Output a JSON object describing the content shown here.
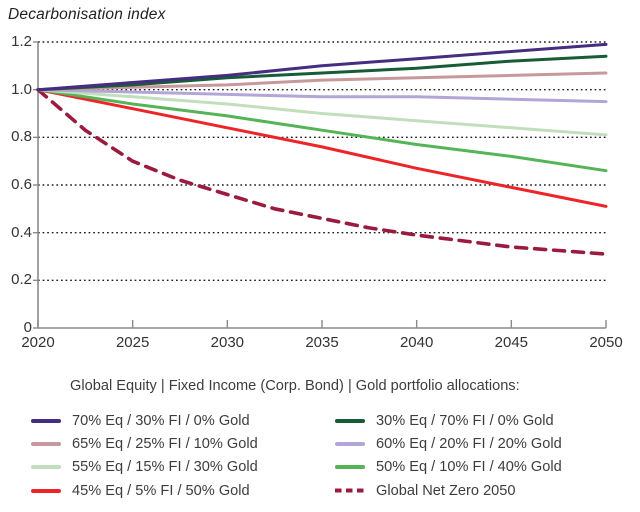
{
  "chart_data": {
    "type": "line",
    "title": "Decarbonisation index",
    "xlabel": "",
    "ylabel": "Decarbonisation index",
    "xlim": [
      2020,
      2050
    ],
    "ylim": [
      0,
      1.2
    ],
    "x_ticks": [
      2020,
      2025,
      2030,
      2035,
      2040,
      2045,
      2050
    ],
    "y_ticks": [
      0,
      0.2,
      0.4,
      0.6,
      0.8,
      1.0,
      1.2
    ],
    "y_tick_labels": [
      "0",
      "0.2",
      "0.4",
      "0.6",
      "0.8",
      "1.0",
      "1.2"
    ],
    "grid": "horizontal dotted lines at 0.2 intervals",
    "legend_position": "below",
    "axis_color": "#8a8a8a",
    "gridline_color": "#1c1c1c",
    "series": [
      {
        "name": "70% Eq / 30% FI / 0% Gold",
        "color": "#452d82",
        "style": "solid",
        "x": [
          2020,
          2025,
          2030,
          2035,
          2040,
          2045,
          2050
        ],
        "values": [
          1.0,
          1.03,
          1.06,
          1.1,
          1.13,
          1.16,
          1.19
        ]
      },
      {
        "name": "30% Eq / 70% FI / 0% Gold",
        "color": "#175c36",
        "style": "solid",
        "x": [
          2020,
          2025,
          2030,
          2035,
          2040,
          2045,
          2050
        ],
        "values": [
          1.0,
          1.02,
          1.05,
          1.07,
          1.09,
          1.12,
          1.14
        ]
      },
      {
        "name": "65% Eq / 25% FI / 10% Gold",
        "color": "#c7989c",
        "style": "solid",
        "x": [
          2020,
          2025,
          2030,
          2035,
          2040,
          2045,
          2050
        ],
        "values": [
          1.0,
          1.01,
          1.02,
          1.04,
          1.05,
          1.06,
          1.07
        ]
      },
      {
        "name": "60% Eq / 20% FI / 20% Gold",
        "color": "#b2a6d7",
        "style": "solid",
        "x": [
          2020,
          2025,
          2030,
          2035,
          2040,
          2045,
          2050
        ],
        "values": [
          1.0,
          0.99,
          0.98,
          0.97,
          0.97,
          0.96,
          0.95
        ]
      },
      {
        "name": "55% Eq / 15% FI / 30% Gold",
        "color": "#c2dfbd",
        "style": "solid",
        "x": [
          2020,
          2025,
          2030,
          2035,
          2040,
          2045,
          2050
        ],
        "values": [
          1.0,
          0.97,
          0.94,
          0.9,
          0.87,
          0.84,
          0.81
        ]
      },
      {
        "name": "50% Eq / 10% FI / 40% Gold",
        "color": "#55b457",
        "style": "solid",
        "x": [
          2020,
          2025,
          2030,
          2035,
          2040,
          2045,
          2050
        ],
        "values": [
          1.0,
          0.94,
          0.89,
          0.83,
          0.77,
          0.72,
          0.66
        ]
      },
      {
        "name": "45% Eq / 5% FI / 50% Gold",
        "color": "#ee2528",
        "style": "solid",
        "x": [
          2020,
          2025,
          2030,
          2035,
          2040,
          2045,
          2050
        ],
        "values": [
          1.0,
          0.92,
          0.84,
          0.76,
          0.67,
          0.59,
          0.51
        ]
      },
      {
        "name": "Global Net Zero 2050",
        "color": "#9b1b3e",
        "style": "dashed",
        "x": [
          2020,
          2022.5,
          2025,
          2027.5,
          2030,
          2032.5,
          2035,
          2037.5,
          2040,
          2042.5,
          2045,
          2047.5,
          2050
        ],
        "values": [
          1.0,
          0.83,
          0.7,
          0.62,
          0.56,
          0.5,
          0.46,
          0.42,
          0.39,
          0.365,
          0.34,
          0.325,
          0.31
        ]
      }
    ]
  },
  "legend": {
    "header": "Global Equity | Fixed Income (Corp. Bond) | Gold portfolio allocations:",
    "item_order": [
      0,
      1,
      2,
      3,
      4,
      5,
      6,
      7
    ]
  }
}
